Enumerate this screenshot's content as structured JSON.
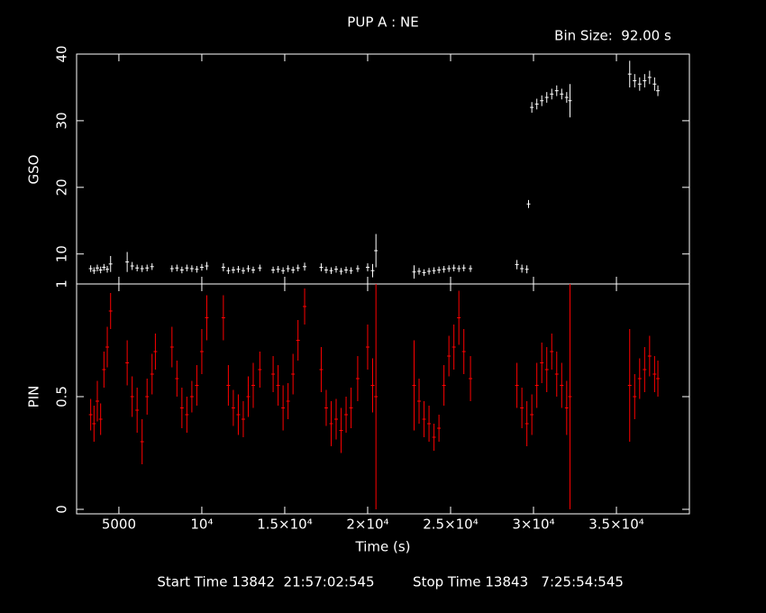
{
  "chart_data": [
    {
      "type": "errorbar",
      "title": "PUP A : NE",
      "annotations": [
        "Bin Size:  92.00 s"
      ],
      "y_label": "GSO",
      "color": "#ffffff",
      "xlim": [
        2450,
        39400
      ],
      "ylim": [
        5.5,
        40
      ],
      "yticks": [
        10,
        20,
        30,
        40
      ],
      "x": [
        3300,
        3500,
        3700,
        3900,
        4100,
        4300,
        4500,
        5500,
        5800,
        6100,
        6400,
        6700,
        7000,
        8200,
        8500,
        8800,
        9100,
        9400,
        9700,
        10000,
        10300,
        11300,
        11600,
        11900,
        12200,
        12500,
        12800,
        13100,
        13500,
        14300,
        14600,
        14900,
        15200,
        15500,
        15800,
        16200,
        17200,
        17500,
        17800,
        18100,
        18400,
        18700,
        19000,
        19400,
        20000,
        20300,
        20500,
        22800,
        23100,
        23400,
        23700,
        24000,
        24300,
        24600,
        24900,
        25200,
        25500,
        25800,
        26200,
        29000,
        29300,
        29600,
        29700,
        29900,
        30200,
        30500,
        30800,
        31100,
        31400,
        31700,
        32000,
        32200,
        35800,
        36100,
        36400,
        36700,
        37000,
        37300,
        37500
      ],
      "values": [
        7.8,
        7.5,
        7.9,
        7.6,
        8.0,
        7.7,
        8.5,
        8.8,
        8.2,
        7.9,
        7.8,
        7.9,
        8.1,
        7.8,
        7.9,
        7.6,
        7.9,
        7.8,
        7.7,
        8.0,
        8.2,
        8.0,
        7.5,
        7.6,
        7.7,
        7.5,
        7.8,
        7.6,
        7.9,
        7.6,
        7.7,
        7.5,
        7.8,
        7.6,
        7.9,
        8.1,
        8.0,
        7.6,
        7.5,
        7.7,
        7.4,
        7.6,
        7.5,
        7.8,
        8.0,
        7.5,
        10.5,
        7.3,
        7.4,
        7.2,
        7.4,
        7.5,
        7.6,
        7.7,
        7.8,
        7.9,
        7.8,
        7.9,
        7.8,
        8.4,
        7.8,
        7.7,
        17.5,
        32,
        32.5,
        33,
        33.5,
        34,
        34.5,
        34,
        33.5,
        33,
        37,
        36,
        35.5,
        36,
        36.5,
        35.5,
        34.5
      ],
      "errors": [
        0.5,
        0.5,
        0.5,
        0.5,
        0.5,
        0.5,
        1.2,
        1.5,
        0.6,
        0.5,
        0.5,
        0.5,
        0.5,
        0.5,
        0.5,
        0.5,
        0.5,
        0.5,
        0.5,
        0.5,
        0.6,
        0.6,
        0.5,
        0.5,
        0.5,
        0.5,
        0.5,
        0.5,
        0.5,
        0.5,
        0.5,
        0.5,
        0.5,
        0.5,
        0.5,
        0.6,
        0.6,
        0.5,
        0.5,
        0.5,
        0.5,
        0.5,
        0.5,
        0.5,
        0.6,
        1.0,
        2.5,
        1.0,
        0.5,
        0.5,
        0.5,
        0.5,
        0.5,
        0.5,
        0.5,
        0.5,
        0.5,
        0.5,
        0.5,
        0.7,
        0.6,
        0.6,
        0.6,
        0.8,
        0.8,
        0.8,
        0.8,
        0.8,
        0.8,
        0.8,
        0.8,
        2.5,
        2.0,
        1.0,
        1.0,
        1.0,
        1.0,
        1.0,
        0.8
      ]
    },
    {
      "type": "errorbar",
      "y_label": "PIN",
      "x_label": "Time (s)",
      "annotations": [
        "Start Time 13842  21:57:02:545",
        "Stop Time 13843   7:25:54:545"
      ],
      "color": "#ff0000",
      "xlim": [
        2450,
        39400
      ],
      "ylim": [
        -0.02,
        1
      ],
      "yticks": [
        0,
        0.5,
        1
      ],
      "xticks": [
        5000,
        {
          "value": 10000,
          "label": "10⁴"
        },
        {
          "value": 15000,
          "label": "1.5×10⁴"
        },
        {
          "value": 20000,
          "label": "2×10⁴"
        },
        {
          "value": 25000,
          "label": "2.5×10⁴"
        },
        {
          "value": 30000,
          "label": "3×10⁴"
        },
        {
          "value": 35000,
          "label": "3.5×10⁴"
        }
      ],
      "x": [
        3300,
        3500,
        3700,
        3900,
        4100,
        4300,
        4500,
        5500,
        5800,
        6100,
        6400,
        6700,
        7000,
        7200,
        8200,
        8500,
        8800,
        9100,
        9400,
        9700,
        10000,
        10300,
        11300,
        11600,
        11900,
        12200,
        12500,
        12800,
        13100,
        13500,
        14300,
        14600,
        14900,
        15200,
        15500,
        15800,
        16200,
        17200,
        17500,
        17800,
        18100,
        18400,
        18700,
        19000,
        19400,
        20000,
        20300,
        20500,
        22800,
        23100,
        23400,
        23700,
        24000,
        24300,
        24600,
        24900,
        25200,
        25500,
        25800,
        26200,
        29000,
        29300,
        29600,
        29900,
        30200,
        30500,
        30800,
        31100,
        31400,
        31700,
        32000,
        32200,
        35800,
        36100,
        36400,
        36700,
        37000,
        37300,
        37500
      ],
      "values": [
        0.42,
        0.38,
        0.48,
        0.4,
        0.62,
        0.72,
        0.88,
        0.65,
        0.5,
        0.44,
        0.3,
        0.5,
        0.6,
        0.7,
        0.72,
        0.58,
        0.45,
        0.42,
        0.5,
        0.55,
        0.7,
        0.85,
        0.85,
        0.55,
        0.45,
        0.42,
        0.4,
        0.5,
        0.55,
        0.62,
        0.6,
        0.55,
        0.45,
        0.48,
        0.6,
        0.75,
        0.9,
        0.62,
        0.45,
        0.38,
        0.4,
        0.35,
        0.42,
        0.45,
        0.58,
        0.72,
        0.55,
        0.5,
        0.55,
        0.48,
        0.4,
        0.38,
        0.32,
        0.36,
        0.55,
        0.68,
        0.72,
        0.85,
        0.7,
        0.58,
        0.55,
        0.45,
        0.38,
        0.42,
        0.55,
        0.65,
        0.62,
        0.7,
        0.6,
        0.55,
        0.45,
        0.5,
        0.55,
        0.5,
        0.58,
        0.62,
        0.68,
        0.6,
        0.58
      ],
      "errors": [
        0.07,
        0.08,
        0.09,
        0.07,
        0.08,
        0.09,
        0.08,
        0.1,
        0.09,
        0.1,
        0.1,
        0.08,
        0.09,
        0.08,
        0.09,
        0.08,
        0.09,
        0.08,
        0.07,
        0.09,
        0.1,
        0.1,
        0.1,
        0.09,
        0.08,
        0.09,
        0.08,
        0.09,
        0.1,
        0.08,
        0.08,
        0.09,
        0.1,
        0.08,
        0.09,
        0.09,
        0.08,
        0.1,
        0.08,
        0.1,
        0.09,
        0.1,
        0.08,
        0.09,
        0.1,
        0.1,
        0.12,
        0.5,
        0.2,
        0.1,
        0.08,
        0.08,
        0.06,
        0.06,
        0.09,
        0.09,
        0.1,
        0.12,
        0.1,
        0.1,
        0.1,
        0.09,
        0.1,
        0.09,
        0.1,
        0.09,
        0.1,
        0.08,
        0.1,
        0.1,
        0.12,
        0.5,
        0.25,
        0.1,
        0.09,
        0.1,
        0.09,
        0.08,
        0.08
      ]
    }
  ]
}
